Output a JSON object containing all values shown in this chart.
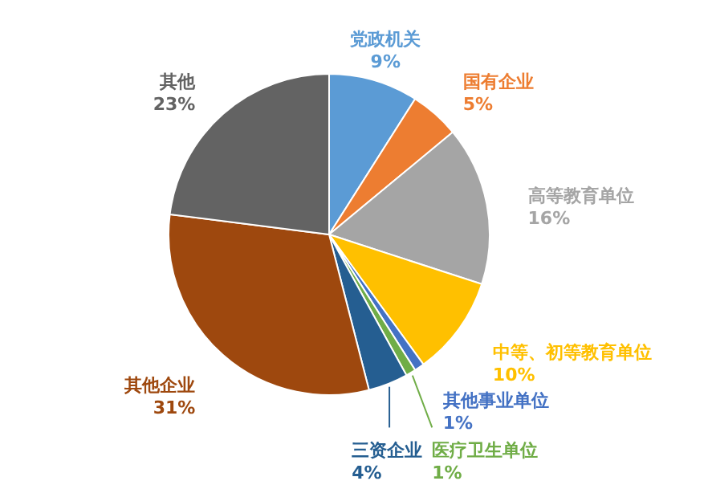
{
  "chart_data": {
    "type": "pie",
    "categories": [
      "党政机关",
      "国有企业",
      "高等教育单位",
      "中等、初等教育单位",
      "其他事业单位",
      "医疗卫生单位",
      "三资企业",
      "其他企业",
      "其他"
    ],
    "values": [
      9,
      5,
      16,
      10,
      1,
      1,
      4,
      31,
      23
    ],
    "colors": [
      "#5b9bd5",
      "#ed7d31",
      "#a5a5a5",
      "#ffc000",
      "#4472c4",
      "#70ad47",
      "#255e91",
      "#9e480e",
      "#636363"
    ],
    "value_labels": [
      "9%",
      "5%",
      "16%",
      "10%",
      "1%",
      "1%",
      "4%",
      "31%",
      "23%"
    ]
  }
}
